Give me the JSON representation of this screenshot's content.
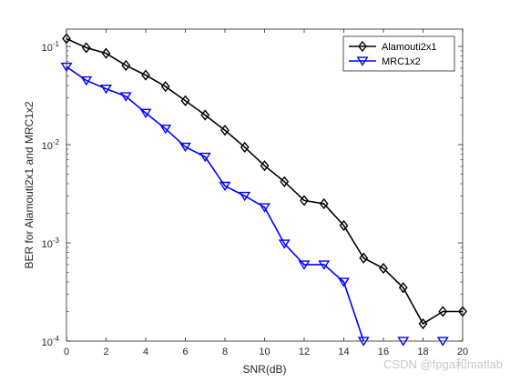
{
  "chart_data": {
    "type": "line",
    "title": "",
    "xlabel": "SNR(dB)",
    "ylabel": "BER for Alamouti2x1 and MRC1x2",
    "xlim": [
      0,
      20
    ],
    "ylim": [
      0.0001,
      0.15
    ],
    "yscale": "log",
    "grid": false,
    "legend_position": "top-right",
    "x_ticks": [
      "0",
      "2",
      "4",
      "6",
      "8",
      "10",
      "12",
      "14",
      "16",
      "18",
      "20"
    ],
    "y_ticks": [
      {
        "base": "10",
        "exp": "-4",
        "value": 0.0001
      },
      {
        "base": "10",
        "exp": "-3",
        "value": 0.001
      },
      {
        "base": "10",
        "exp": "-2",
        "value": 0.01
      },
      {
        "base": "10",
        "exp": "-1",
        "value": 0.1
      }
    ],
    "series": [
      {
        "name": "Alamouti2x1",
        "color": "#000000",
        "marker": "diamond",
        "x": [
          0,
          1,
          2,
          3,
          4,
          5,
          6,
          7,
          8,
          9,
          10,
          11,
          12,
          13,
          14,
          15,
          16,
          17,
          18,
          19,
          20
        ],
        "y": [
          0.12,
          0.097,
          0.085,
          0.064,
          0.051,
          0.039,
          0.028,
          0.02,
          0.014,
          0.0094,
          0.0061,
          0.0042,
          0.0027,
          0.0025,
          0.0015,
          0.0007,
          0.00055,
          0.00035,
          0.00015,
          0.0002,
          0.0002
        ]
      },
      {
        "name": "MRC1x2",
        "color": "#0000ff",
        "marker": "triangle-down",
        "x": [
          0,
          1,
          2,
          3,
          4,
          5,
          6,
          7,
          8,
          9,
          10,
          11,
          12,
          13,
          14,
          15,
          17,
          19
        ],
        "y": [
          0.062,
          0.045,
          0.037,
          0.031,
          0.021,
          0.0145,
          0.0095,
          0.0075,
          0.0038,
          0.003,
          0.0023,
          0.00098,
          0.0006,
          0.0006,
          0.0004,
          0.0001,
          0.0001,
          0.0001
        ],
        "segments": [
          [
            0,
            15
          ]
        ]
      }
    ]
  },
  "watermark": "CSDN @fpga和matlab"
}
